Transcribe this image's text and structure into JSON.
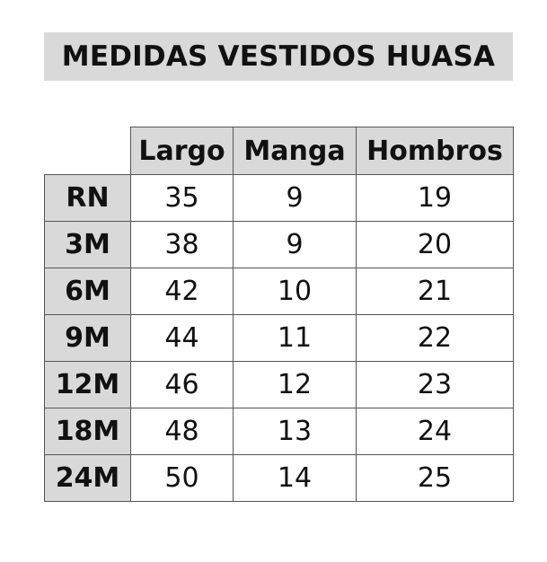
{
  "title": "MEDIDAS VESTIDOS HUASA",
  "table": {
    "columns": [
      "Largo",
      "Manga",
      "Hombros"
    ],
    "rows": [
      {
        "size": "RN",
        "largo": "35",
        "manga": "9",
        "hombros": "19"
      },
      {
        "size": "3M",
        "largo": "38",
        "manga": "9",
        "hombros": "20"
      },
      {
        "size": "6M",
        "largo": "42",
        "manga": "10",
        "hombros": "21"
      },
      {
        "size": "9M",
        "largo": "44",
        "manga": "11",
        "hombros": "22"
      },
      {
        "size": "12M",
        "largo": "46",
        "manga": "12",
        "hombros": "23"
      },
      {
        "size": "18M",
        "largo": "48",
        "manga": "13",
        "hombros": "24"
      },
      {
        "size": "24M",
        "largo": "50",
        "manga": "14",
        "hombros": "25"
      }
    ]
  },
  "colors": {
    "header_fill": "#d9d9d9",
    "border": "#555555",
    "text": "#111111"
  }
}
